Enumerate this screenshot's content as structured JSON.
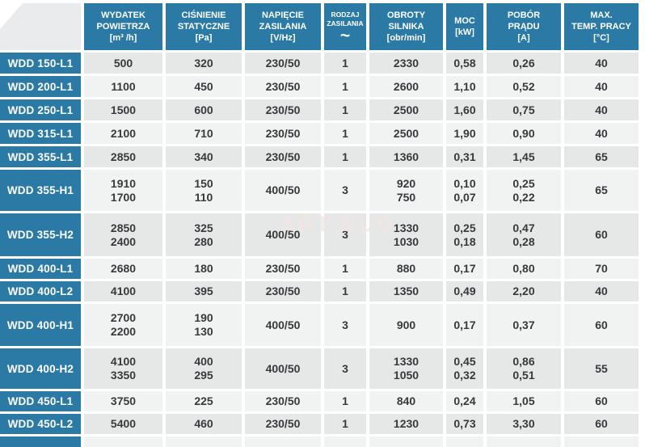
{
  "watermark": "ART-BUD",
  "colors": {
    "header_blue": "#2b7aa6",
    "row_dark": "#e6e8e8",
    "row_light": "#f1f2f2",
    "corner_gray": "#e9ebec",
    "text_dark": "#37393c"
  },
  "table": {
    "columns": [
      {
        "label": "",
        "unit": ""
      },
      {
        "label": "WYDATEK\nPOWIETRZA",
        "unit": "[m³ /h]"
      },
      {
        "label": "CIŚNIENIE\nSTATYCZNE",
        "unit": "[Pa]"
      },
      {
        "label": "NAPIĘCIE\nZASILANIA",
        "unit": "[V/Hz]"
      },
      {
        "label": "RODZAJ\nZASILANIA",
        "unit": "~"
      },
      {
        "label": "OBROTY\nSILNIKA",
        "unit": "[obr/min]"
      },
      {
        "label": "MOC",
        "unit": "[kW]"
      },
      {
        "label": "POBÓR\nPRĄDU",
        "unit": "[A]"
      },
      {
        "label": "MAX.\nTEMP. PRACY",
        "unit": "[°C]"
      }
    ],
    "rows": [
      {
        "model": "WDD 150-L1",
        "cells": [
          "500",
          "320",
          "230/50",
          "1",
          "2330",
          "0,58",
          "0,26",
          "40"
        ]
      },
      {
        "model": "WDD 200-L1",
        "cells": [
          "1100",
          "450",
          "230/50",
          "1",
          "2600",
          "1,10",
          "0,52",
          "40"
        ]
      },
      {
        "model": "WDD 250-L1",
        "cells": [
          "1500",
          "600",
          "230/50",
          "1",
          "2500",
          "1,60",
          "0,75",
          "40"
        ]
      },
      {
        "model": "WDD 315-L1",
        "cells": [
          "2100",
          "710",
          "230/50",
          "1",
          "2500",
          "1,90",
          "0,90",
          "40"
        ]
      },
      {
        "model": "WDD 355-L1",
        "cells": [
          "2850",
          "340",
          "230/50",
          "1",
          "1360",
          "0,31",
          "1,45",
          "65"
        ]
      },
      {
        "model": "WDD 355-H1",
        "cells": [
          "1910\n1700",
          "150\n110",
          "400/50",
          "3",
          "920\n750",
          "0,10\n0,07",
          "0,25\n0,22",
          "65"
        ]
      },
      {
        "model": "WDD 355-H2",
        "cells": [
          "2850\n2400",
          "325\n280",
          "400/50",
          "3",
          "1330\n1030",
          "0,25\n0,18",
          "0,47\n0,28",
          "60"
        ]
      },
      {
        "model": "WDD 400-L1",
        "cells": [
          "2680",
          "180",
          "230/50",
          "1",
          "880",
          "0,17",
          "0,80",
          "70"
        ]
      },
      {
        "model": "WDD 400-L2",
        "cells": [
          "4100",
          "395",
          "230/50",
          "1",
          "1350",
          "0,49",
          "2,20",
          "40"
        ]
      },
      {
        "model": "WDD 400-H1",
        "cells": [
          "2700\n2200",
          "190\n130",
          "400/50",
          "3",
          "900",
          "0,17",
          "0,37",
          "60"
        ]
      },
      {
        "model": "WDD 400-H2",
        "cells": [
          "4100\n3350",
          "400\n295",
          "400/50",
          "3",
          "1330\n1050",
          "0,45\n0,32",
          "0,86\n0,51",
          "55"
        ]
      },
      {
        "model": "WDD 450-L1",
        "cells": [
          "3750",
          "225",
          "230/50",
          "1",
          "840",
          "0,24",
          "1,05",
          "60"
        ]
      },
      {
        "model": "WDD 450-L2",
        "cells": [
          "5400",
          "460",
          "230/50",
          "1",
          "1230",
          "0,73",
          "3,30",
          "60"
        ]
      },
      {
        "model": "",
        "cells": [
          "",
          "",
          "",
          "",
          "",
          "",
          "",
          ""
        ]
      }
    ]
  }
}
